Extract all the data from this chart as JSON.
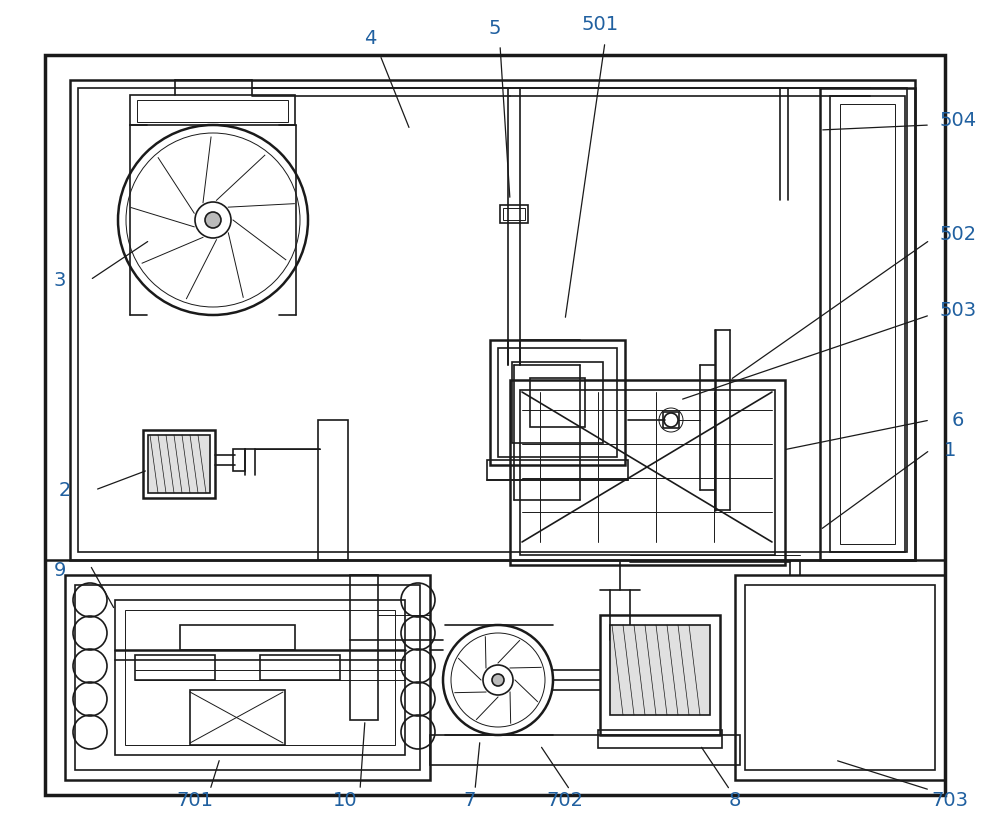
{
  "bg_color": "#ffffff",
  "line_color": "#1a1a1a",
  "label_color": "#2060a0",
  "fig_width": 10.0,
  "fig_height": 8.39,
  "dpi": 100
}
